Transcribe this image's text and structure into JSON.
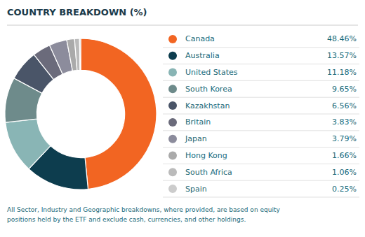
{
  "chart_data": {
    "type": "donut",
    "title": "COUNTRY BREAKDOWN (%)",
    "categories": [
      "Canada",
      "Australia",
      "United States",
      "South Korea",
      "Kazakhstan",
      "Britain",
      "Japan",
      "Hong Kong",
      "South Africa",
      "Spain"
    ],
    "values": [
      48.46,
      13.57,
      11.18,
      9.65,
      6.56,
      3.83,
      3.79,
      1.66,
      1.06,
      0.25
    ],
    "value_labels": [
      "48.46%",
      "13.57%",
      "11.18%",
      "9.65%",
      "6.56%",
      "3.83%",
      "3.79%",
      "1.66%",
      "1.06%",
      "0.25%"
    ],
    "colors": [
      "#F26522",
      "#0D3D4E",
      "#89B5B5",
      "#6E8B8B",
      "#4A5568",
      "#6B6B7B",
      "#8C8C9C",
      "#AAAAAA",
      "#BBBBBB",
      "#CCCCCC"
    ],
    "legend": "right",
    "annotations": [
      "All Sector, Industry and Geographic breakdowns, where provided, are based on equity\npositions held by the ETF and exclude cash, currencies, and other holdings."
    ]
  }
}
